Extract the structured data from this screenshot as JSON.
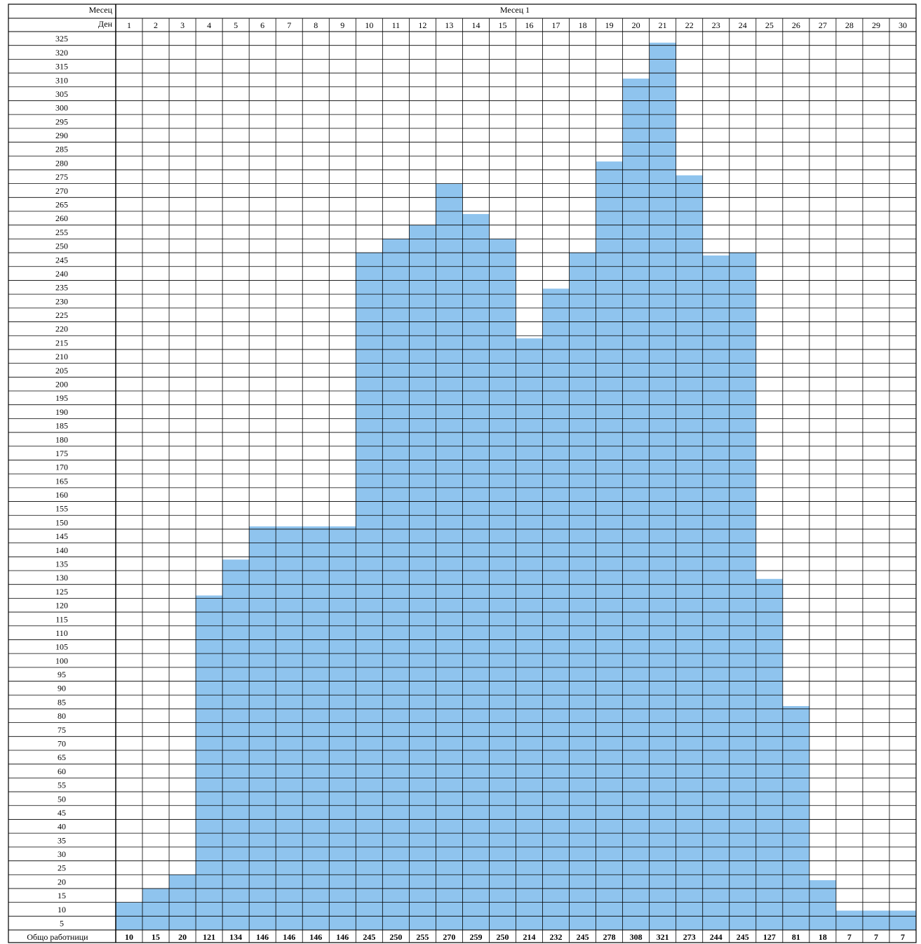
{
  "header": {
    "month_label": "Месец",
    "month_value": "Месец 1",
    "day_label": "Ден",
    "totals_label": "Общо работници"
  },
  "chart_data": {
    "type": "bar",
    "title": "",
    "xlabel": "Ден",
    "ylabel": "",
    "categories": [
      "1",
      "2",
      "3",
      "4",
      "5",
      "6",
      "7",
      "8",
      "9",
      "10",
      "11",
      "12",
      "13",
      "14",
      "15",
      "16",
      "17",
      "18",
      "19",
      "20",
      "21",
      "22",
      "23",
      "24",
      "25",
      "26",
      "27",
      "28",
      "29",
      "30"
    ],
    "values": [
      10,
      15,
      20,
      121,
      134,
      146,
      146,
      146,
      146,
      245,
      250,
      255,
      270,
      259,
      250,
      214,
      232,
      245,
      278,
      308,
      321,
      273,
      244,
      245,
      127,
      81,
      18,
      7,
      7,
      7
    ],
    "y_ticks": [
      325,
      320,
      315,
      310,
      305,
      300,
      295,
      290,
      285,
      280,
      275,
      270,
      265,
      260,
      255,
      250,
      245,
      240,
      235,
      230,
      225,
      220,
      215,
      210,
      205,
      200,
      195,
      190,
      185,
      180,
      175,
      170,
      165,
      160,
      155,
      150,
      145,
      140,
      135,
      130,
      125,
      120,
      115,
      110,
      105,
      100,
      95,
      90,
      85,
      80,
      75,
      70,
      65,
      60,
      55,
      50,
      45,
      40,
      35,
      30,
      25,
      20,
      15,
      10,
      5
    ],
    "ylim": [
      0,
      325
    ],
    "grid": true,
    "bar_color": "#8fc4ee",
    "grid_color": "#000000"
  }
}
